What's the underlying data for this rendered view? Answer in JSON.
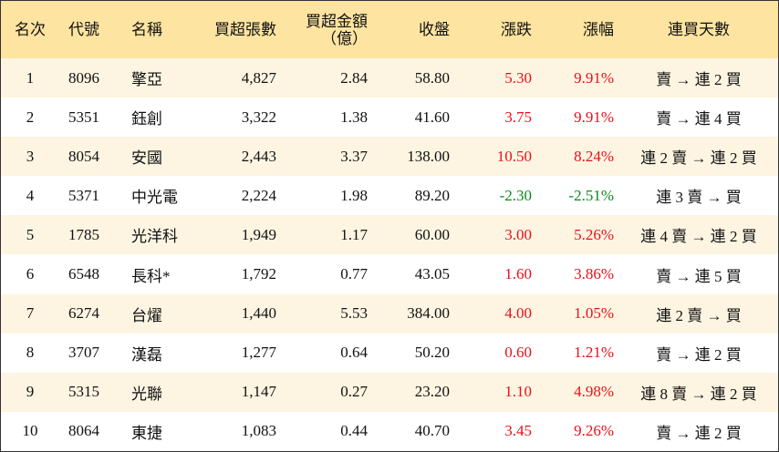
{
  "table": {
    "header": [
      "名次",
      "代號",
      "名稱",
      "買超張數",
      [
        "買超金額",
        "（億）"
      ],
      "收盤",
      "漲跌",
      "漲幅",
      "連買天數"
    ],
    "rows": [
      [
        "1",
        "8096",
        "擎亞",
        "4,827",
        "2.84",
        "58.80",
        "5.30",
        "9.91%",
        "賣 → 連 2 買"
      ],
      [
        "2",
        "5351",
        "鈺創",
        "3,322",
        "1.38",
        "41.60",
        "3.75",
        "9.91%",
        "賣 → 連 4 買"
      ],
      [
        "3",
        "8054",
        "安國",
        "2,443",
        "3.37",
        "138.00",
        "10.50",
        "8.24%",
        "連 2 賣 → 連 2 買"
      ],
      [
        "4",
        "5371",
        "中光電",
        "2,224",
        "1.98",
        "89.20",
        "-2.30",
        "-2.51%",
        "連 3 賣 → 買"
      ],
      [
        "5",
        "1785",
        "光洋科",
        "1,949",
        "1.17",
        "60.00",
        "3.00",
        "5.26%",
        "連 4 賣 → 連 2 買"
      ],
      [
        "6",
        "6548",
        "長科*",
        "1,792",
        "0.77",
        "43.05",
        "1.60",
        "3.86%",
        "賣 → 連 5 買"
      ],
      [
        "7",
        "6274",
        "台燿",
        "1,440",
        "5.53",
        "384.00",
        "4.00",
        "1.05%",
        "連 2 賣 → 買"
      ],
      [
        "8",
        "3707",
        "漢磊",
        "1,277",
        "0.64",
        "50.20",
        "0.60",
        "1.21%",
        "賣 → 連 2 買"
      ],
      [
        "9",
        "5315",
        "光聯",
        "1,147",
        "0.27",
        "23.20",
        "1.10",
        "4.98%",
        "連 8 賣 → 連 2 買"
      ],
      [
        "10",
        "8064",
        "東捷",
        "1,083",
        "0.44",
        "40.70",
        "3.45",
        "9.26%",
        "賣 → 連 2 買"
      ]
    ]
  }
}
